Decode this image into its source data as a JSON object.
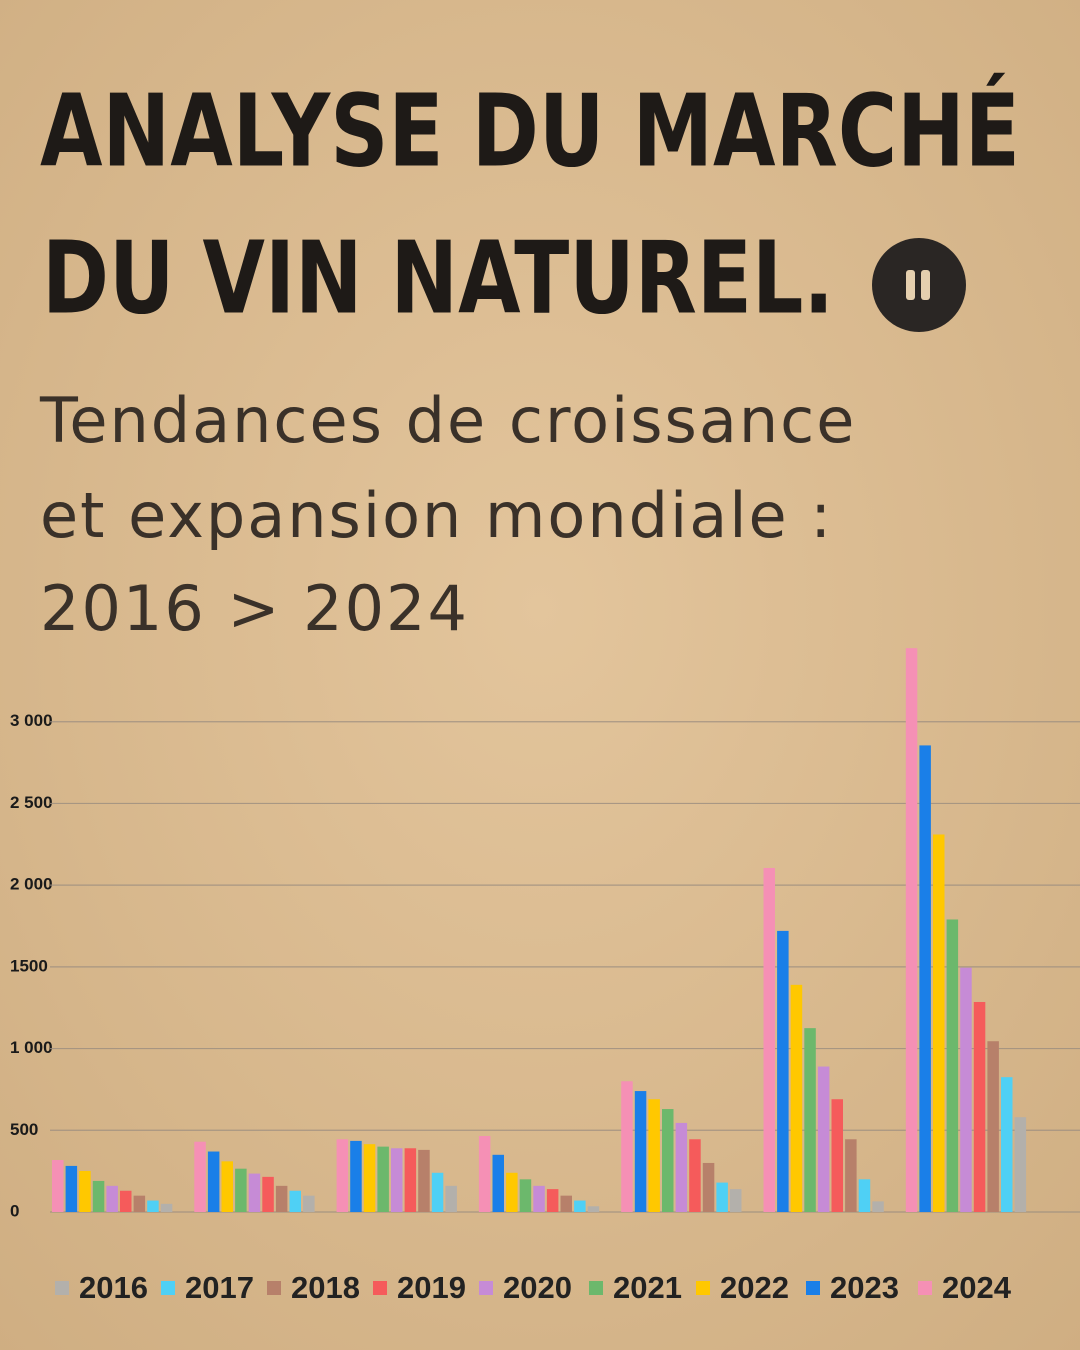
{
  "chart_data": {
    "type": "bar",
    "title": [
      "ANALYSE DU MARCHÉ",
      "DU VIN NATUREL."
    ],
    "subtitle": [
      "Tendances de croissance",
      "et expansion mondiale :",
      "2016 > 2024"
    ],
    "categories": [
      null,
      null,
      null,
      null,
      null,
      null,
      null
    ],
    "series": [
      {
        "name": "2016",
        "color": "#b3b0ab",
        "values": [
          50,
          100,
          160,
          35,
          140,
          65,
          580
        ]
      },
      {
        "name": "2017",
        "color": "#4fd0f5",
        "values": [
          70,
          130,
          240,
          70,
          180,
          200,
          825
        ]
      },
      {
        "name": "2018",
        "color": "#b7806a",
        "values": [
          100,
          160,
          380,
          100,
          300,
          445,
          1045
        ]
      },
      {
        "name": "2019",
        "color": "#f55b5b",
        "values": [
          130,
          215,
          390,
          140,
          445,
          690,
          1285
        ]
      },
      {
        "name": "2020",
        "color": "#c68bd6",
        "values": [
          160,
          235,
          390,
          160,
          545,
          890,
          1495
        ]
      },
      {
        "name": "2021",
        "color": "#6cb86c",
        "values": [
          190,
          265,
          400,
          200,
          630,
          1125,
          1790
        ]
      },
      {
        "name": "2022",
        "color": "#ffc800",
        "values": [
          251,
          310,
          415,
          240,
          690,
          1390,
          2310
        ]
      },
      {
        "name": "2023",
        "color": "#1a7fe8",
        "values": [
          282,
          370,
          435,
          350,
          740,
          1720,
          2855
        ]
      },
      {
        "name": "2024",
        "color": "#f590b5",
        "values": [
          318,
          430,
          445,
          465,
          800,
          2105,
          3450
        ]
      }
    ],
    "ylim": [
      0,
      3500
    ],
    "yticks": [
      0,
      500,
      {
        "value": 1000,
        "label": "1 000"
      },
      1500,
      {
        "value": 2000,
        "label": "2 000"
      },
      {
        "value": 2500,
        "label": "2 500"
      },
      {
        "value": 3000,
        "label": "3 000"
      }
    ],
    "grid": true
  }
}
